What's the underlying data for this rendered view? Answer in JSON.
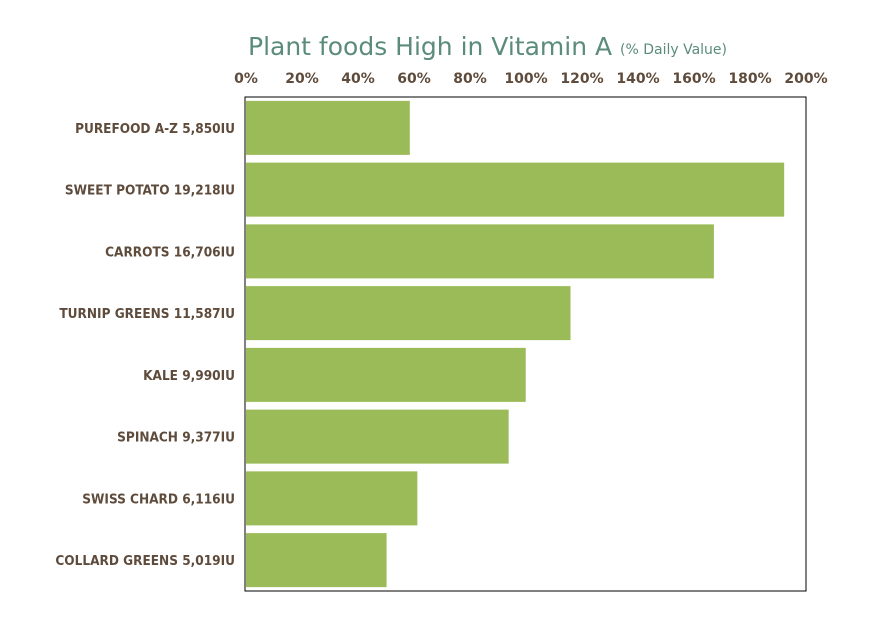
{
  "chart_data": {
    "type": "bar",
    "orientation": "horizontal",
    "title": "Plant foods High in Vitamin A",
    "subtitle": "(% Daily Value)",
    "xlabel": "",
    "ylabel": "",
    "xlim": [
      0,
      200
    ],
    "x_ticks": [
      "0%",
      "20%",
      "40%",
      "60%",
      "80%",
      "100%",
      "120%",
      "140%",
      "160%",
      "180%",
      "200%"
    ],
    "x_axis_position": "top",
    "grid": false,
    "categories": [
      "PUREFOOD A-Z 5,850IU",
      "SWEET POTATO 19,218IU",
      "CARROTS 16,706IU",
      "TURNIP GREENS 11,587IU",
      "KALE 9,990IU",
      "SPINACH 9,377IU",
      "SWISS CHARD 6,116IU",
      "COLLARD GREENS 5,019IU"
    ],
    "values": [
      58.5,
      192.2,
      167.1,
      115.9,
      99.9,
      93.8,
      61.2,
      50.2
    ],
    "bar_color": "#9bbb59",
    "title_color": "#5b8c7b",
    "label_color": "#5e4b3c"
  }
}
